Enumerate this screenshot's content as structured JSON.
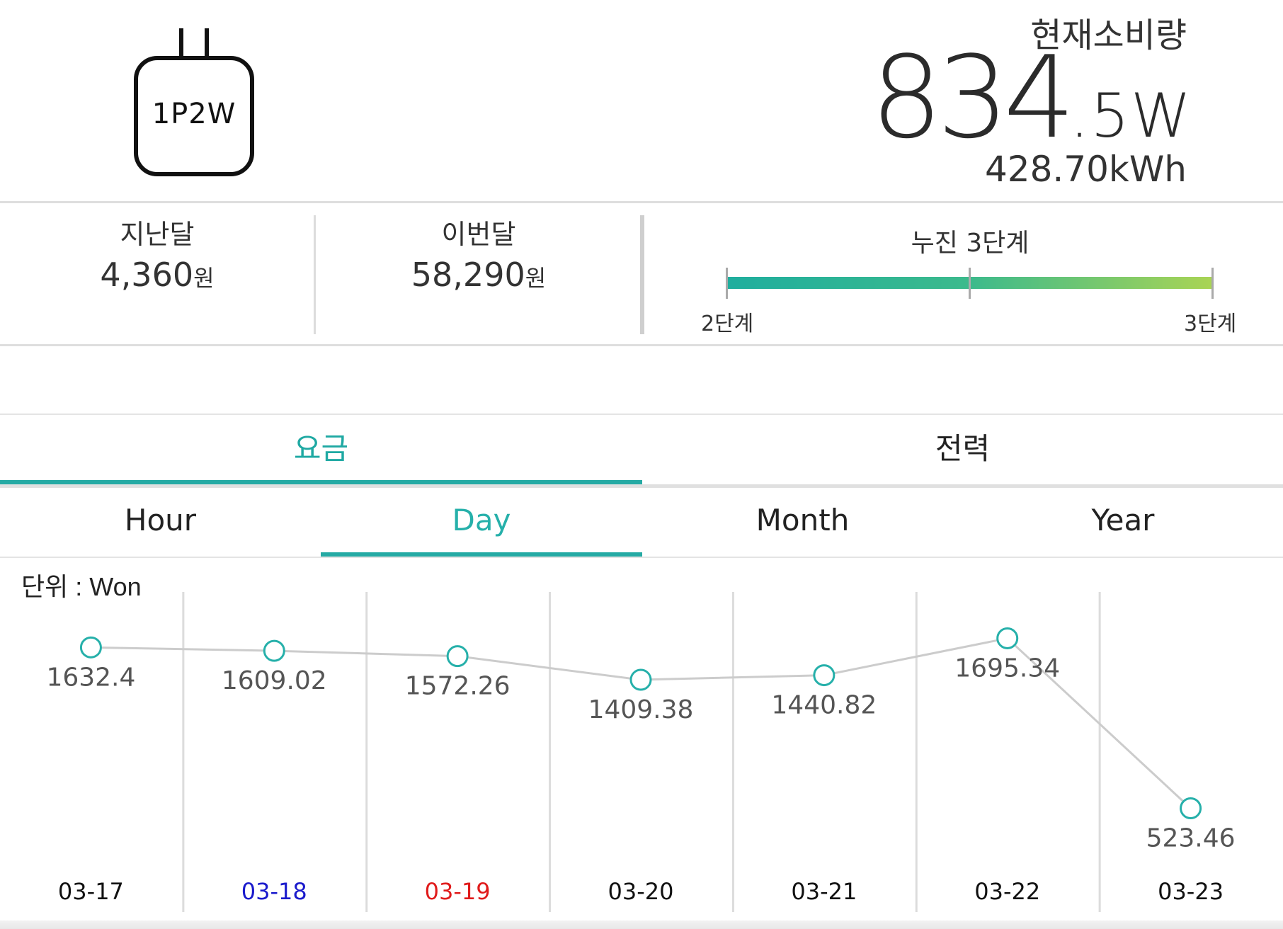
{
  "device": {
    "icon": "plug-icon",
    "label": "1P2W"
  },
  "current": {
    "title": "현재소비량",
    "power_integer": "834",
    "power_decimal": ".5W",
    "energy_total": "428.70kWh"
  },
  "billing": {
    "last_month": {
      "label": "지난달",
      "value": "4,360",
      "unit": "원"
    },
    "this_month": {
      "label": "이번달",
      "value": "58,290",
      "unit": "원"
    },
    "tier": {
      "title": "누진 3단계",
      "low_label": "2단계",
      "high_label": "3단계",
      "progress": 1.0,
      "colors": [
        "#1fae9e",
        "#aad454"
      ]
    }
  },
  "tabs": {
    "items": [
      {
        "label": "요금",
        "active": true
      },
      {
        "label": "전력",
        "active": false
      }
    ]
  },
  "periods": {
    "items": [
      {
        "label": "Hour",
        "active": false
      },
      {
        "label": "Day",
        "active": true
      },
      {
        "label": "Month",
        "active": false
      },
      {
        "label": "Year",
        "active": false
      }
    ]
  },
  "chart": {
    "unit_label": "단위 : Won"
  },
  "chart_data": {
    "type": "line",
    "categories": [
      "03-17",
      "03-18",
      "03-19",
      "03-20",
      "03-21",
      "03-22",
      "03-23"
    ],
    "category_colors": [
      "#111111",
      "#1a1acc",
      "#e01b1b",
      "#111111",
      "#111111",
      "#111111",
      "#111111"
    ],
    "values": [
      1632.4,
      1609.02,
      1572.26,
      1409.38,
      1440.82,
      1695.34,
      523.46
    ],
    "value_labels": [
      "1632.4",
      "1609.02",
      "1572.26",
      "1409.38",
      "1440.82",
      "1695.34",
      "523.46"
    ],
    "ylabel": "단위 : Won",
    "line_color": "#cccccc",
    "marker_color": "#26b0aa",
    "grid": "vertical"
  },
  "colors": {
    "accent": "#25aaa4"
  }
}
